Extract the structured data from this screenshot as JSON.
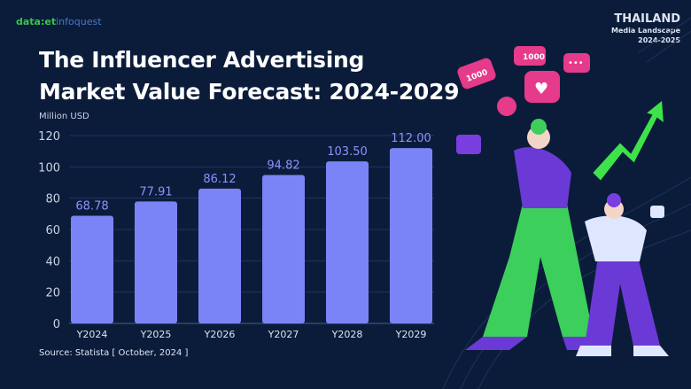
{
  "logo": {
    "part1": "data:et",
    "part2": "infoquest"
  },
  "badge": {
    "title": "THAILAND",
    "subtitle": "Media Landscape",
    "years": "2024-2025"
  },
  "colors": {
    "background": "#0b1c3a",
    "bar": "#7b84f7",
    "label": "#8a93ff"
  },
  "chart_data": {
    "type": "bar",
    "title_lines": [
      "The Influencer Advertising",
      "Market Value Forecast: 2024-2029"
    ],
    "ylabel": "Million USD",
    "categories": [
      "Y2024",
      "Y2025",
      "Y2026",
      "Y2027",
      "Y2028",
      "Y2029"
    ],
    "values": [
      68.78,
      77.91,
      86.12,
      94.82,
      103.5,
      112.0
    ],
    "value_labels": [
      "68.78",
      "77.91",
      "86.12",
      "94.82",
      "103.50",
      "112.00"
    ],
    "yticks": [
      "0",
      "20",
      "40",
      "60",
      "80",
      "100",
      "120"
    ],
    "ylim": [
      0,
      120
    ],
    "grid": true
  },
  "source": "Source: Statista [ October, 2024 ]",
  "illustration": {
    "bubble1": "1000",
    "bubble2": "1000"
  }
}
